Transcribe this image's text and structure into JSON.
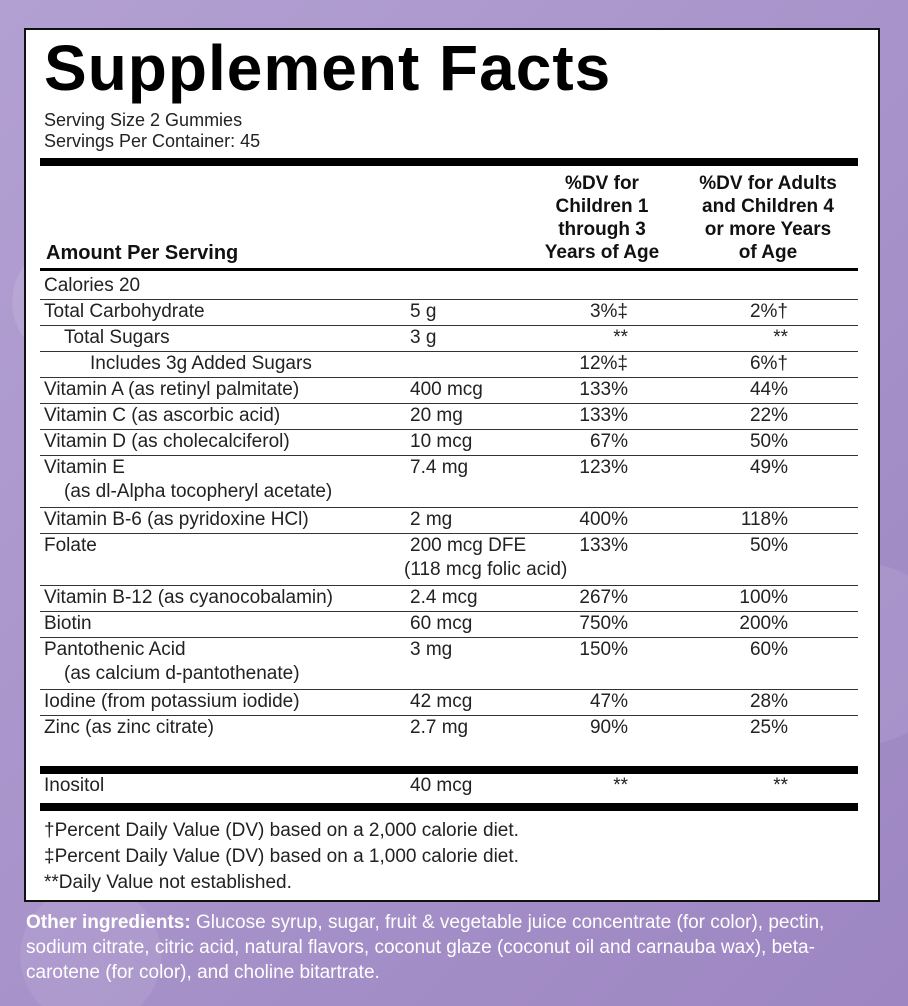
{
  "title": "Supplement Facts",
  "serving_size": "Serving Size 2 Gummies",
  "servings_per_container": "Servings Per Container: 45",
  "headers": {
    "amount": "Amount Per Serving",
    "children": [
      "%DV for",
      "Children 1",
      "through 3",
      "Years of Age"
    ],
    "adults": [
      "%DV for Adults",
      "and Children 4",
      "or more Years",
      "of Age"
    ]
  },
  "calories": "Calories  20",
  "rows": [
    {
      "name": "Total Carbohydrate",
      "amount": "5 g",
      "child": "3%‡",
      "adult": "2%†"
    },
    {
      "name": "Total Sugars",
      "amount": "3 g",
      "child": "**",
      "adult": "**"
    },
    {
      "name": "Includes 3g Added Sugars",
      "amount": "",
      "child": "12%‡",
      "adult": "6%†"
    },
    {
      "name": "Vitamin A (as retinyl palmitate)",
      "amount": "400 mcg",
      "child": "133%",
      "adult": "44%"
    },
    {
      "name": "Vitamin C (as ascorbic acid)",
      "amount": "20 mg",
      "child": "133%",
      "adult": "22%"
    },
    {
      "name": "Vitamin D (as cholecalciferol)",
      "amount": "10 mcg",
      "child": "67%",
      "adult": "50%"
    },
    {
      "name": "Vitamin E",
      "name2": "(as dl-Alpha tocopheryl acetate)",
      "amount": "7.4 mg",
      "child": "123%",
      "adult": "49%"
    },
    {
      "name": "Vitamin B-6 (as pyridoxine HCl)",
      "amount": "2 mg",
      "child": "400%",
      "adult": "118%"
    },
    {
      "name": "Folate",
      "amount": "200 mcg DFE",
      "amount2": "(118 mcg folic acid)",
      "child": "133%",
      "adult": "50%"
    },
    {
      "name": "Vitamin B-12 (as cyanocobalamin)",
      "amount": "2.4 mcg",
      "child": "267%",
      "adult": "100%"
    },
    {
      "name": "Biotin",
      "amount": "60 mcg",
      "child": "750%",
      "adult": "200%"
    },
    {
      "name": "Pantothenic Acid",
      "name2": "(as calcium d-pantothenate)",
      "amount": "3 mg",
      "child": "150%",
      "adult": "60%"
    },
    {
      "name": "Iodine (from potassium iodide)",
      "amount": "42 mcg",
      "child": "47%",
      "adult": "28%"
    },
    {
      "name": "Zinc (as zinc citrate)",
      "amount": "2.7 mg",
      "child": "90%",
      "adult": "25%"
    },
    {
      "name": "Inositol",
      "amount": "40 mcg",
      "child": "**",
      "adult": "**"
    }
  ],
  "footnotes": [
    "†Percent Daily Value (DV) based on a 2,000 calorie diet.",
    "‡Percent Daily Value (DV) based on a 1,000 calorie diet.",
    "**Daily Value not established."
  ],
  "other_label": "Other ingredients:",
  "other_text": " Glucose syrup, sugar, fruit & vegetable juice concentrate (for color), pectin, sodium citrate, citric acid, natural flavors, coconut glaze (coconut oil and carnauba wax), beta-carotene (for color), and choline bitartrate."
}
